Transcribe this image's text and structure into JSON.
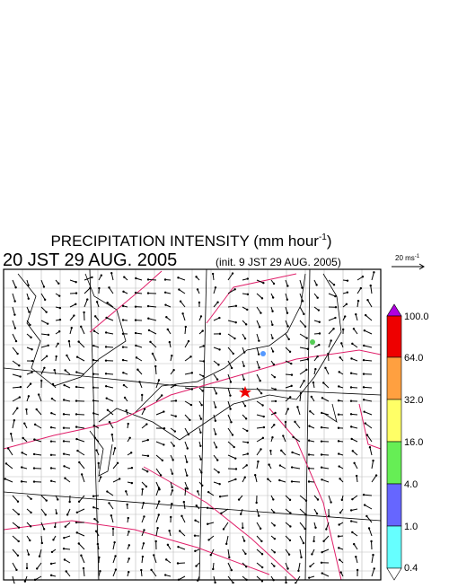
{
  "header": {
    "title": "PRECIPITATION INTENSITY (mm hour",
    "title_sup": "-1",
    "title_end": ")",
    "time": "20 JST 29 AUG. 2005",
    "init": "(init. 9 JST 29 AUG. 2005)"
  },
  "wind_scale": {
    "label": "20 ms",
    "sup": "-1"
  },
  "legend": {
    "levels": [
      "100.0",
      "64.0",
      "32.0",
      "16.0",
      "4.0",
      "1.0",
      "0.4"
    ]
  }
}
